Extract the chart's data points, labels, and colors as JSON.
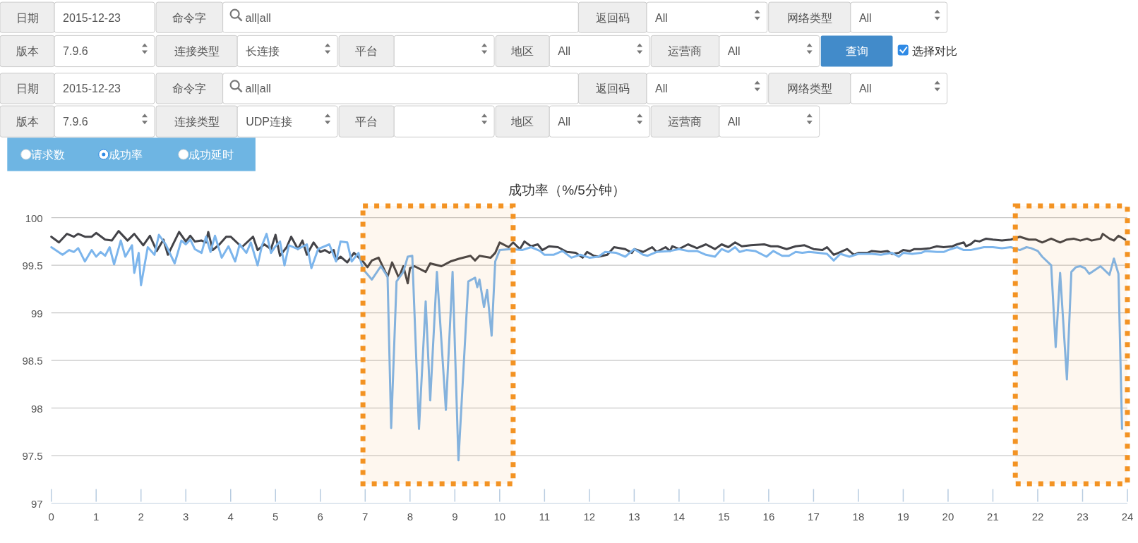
{
  "chart_data": {
    "type": "line",
    "title": "成功率（%/5分钟）",
    "x": [
      0,
      0.17,
      0.35,
      0.5,
      0.6,
      0.75,
      0.9,
      1.0,
      1.2,
      1.35,
      1.5,
      1.7,
      1.85,
      2.05,
      2.2,
      2.35,
      2.5,
      2.6,
      2.85,
      3.0,
      3.1,
      3.2,
      3.35,
      3.45,
      3.5,
      3.6,
      3.75,
      3.9,
      4.0,
      4.25,
      4.5,
      4.6,
      4.75,
      4.9,
      5.0,
      5.1,
      5.25,
      5.35,
      5.5,
      5.6,
      5.7,
      5.85,
      6.0,
      6.1,
      6.2,
      6.3,
      6.35,
      6.45,
      6.6,
      6.75,
      6.95,
      7.05,
      7.15,
      7.3,
      7.5,
      7.6,
      7.75,
      7.85,
      7.95,
      8.0,
      8.1,
      8.35,
      8.45,
      8.7,
      8.9,
      9.1,
      9.35,
      9.45,
      9.55,
      9.8,
      9.9,
      10.0,
      10.2,
      10.3,
      10.45,
      10.55,
      10.7,
      10.85,
      10.95,
      11.1,
      11.3,
      11.5,
      11.7,
      11.85,
      11.95,
      12.1,
      12.2,
      12.4,
      12.55,
      12.8,
      12.95,
      13.0,
      13.2,
      13.4,
      13.5,
      13.7,
      13.8,
      13.85,
      14.0,
      14.2,
      14.4,
      14.6,
      14.8,
      14.95,
      15.1,
      15.25,
      15.4,
      15.6,
      15.9,
      16.05,
      16.2,
      16.4,
      16.6,
      16.8,
      17.0,
      17.2,
      17.3,
      17.45,
      17.6,
      17.75,
      17.9,
      18.0,
      18.2,
      18.3,
      18.5,
      18.65,
      18.75,
      18.9,
      19.0,
      19.15,
      19.25,
      19.4,
      19.6,
      19.75,
      19.9,
      20.1,
      20.2,
      20.35,
      20.4,
      20.5,
      20.6,
      20.7,
      20.85,
      21.0,
      21.2,
      21.4,
      21.6,
      21.8,
      21.95,
      22.1,
      22.3,
      22.5,
      22.65,
      22.8,
      22.95,
      23.1,
      23.2,
      23.4,
      23.45,
      23.6,
      23.7,
      23.8,
      23.95
    ],
    "xlim": [
      0,
      24
    ],
    "xticks": [
      0,
      1,
      2,
      3,
      4,
      5,
      6,
      7,
      8,
      9,
      10,
      11,
      12,
      13,
      14,
      15,
      16,
      17,
      18,
      19,
      20,
      21,
      22,
      23,
      24
    ],
    "ylim": [
      97,
      100
    ],
    "yticks": [
      97,
      97.5,
      98,
      98.5,
      99,
      99.5,
      100
    ],
    "grid": "y",
    "series": [
      {
        "color": "#434348",
        "values": [
          99.8,
          99.74,
          99.83,
          99.8,
          99.83,
          99.8,
          99.8,
          99.84,
          99.77,
          99.76,
          99.86,
          99.76,
          99.83,
          99.71,
          99.81,
          99.65,
          99.77,
          99.61,
          99.85,
          99.75,
          99.81,
          99.75,
          99.76,
          99.74,
          99.85,
          99.66,
          99.72,
          99.8,
          99.8,
          99.69,
          99.8,
          99.66,
          99.72,
          99.67,
          99.82,
          99.6,
          99.69,
          99.8,
          99.67,
          99.76,
          99.61,
          99.74,
          99.64,
          99.66,
          99.63,
          99.66,
          99.55,
          99.59,
          99.53,
          99.63,
          99.54,
          99.48,
          99.55,
          99.58,
          99.38,
          99.53,
          99.37,
          99.49,
          99.31,
          99.47,
          99.49,
          99.43,
          99.52,
          99.49,
          99.54,
          99.57,
          99.6,
          99.55,
          99.6,
          99.58,
          99.63,
          99.74,
          99.69,
          99.74,
          99.67,
          99.75,
          99.7,
          99.72,
          99.66,
          99.7,
          99.69,
          99.64,
          99.63,
          99.58,
          99.64,
          99.6,
          99.59,
          99.61,
          99.69,
          99.67,
          99.63,
          99.67,
          99.64,
          99.69,
          99.64,
          99.69,
          99.65,
          99.7,
          99.67,
          99.72,
          99.68,
          99.72,
          99.67,
          99.72,
          99.69,
          99.74,
          99.7,
          99.71,
          99.72,
          99.7,
          99.7,
          99.67,
          99.7,
          99.71,
          99.67,
          99.66,
          99.69,
          99.61,
          99.64,
          99.67,
          99.61,
          99.63,
          99.63,
          99.65,
          99.64,
          99.65,
          99.62,
          99.63,
          99.66,
          99.65,
          99.67,
          99.67,
          99.68,
          99.7,
          99.69,
          99.7,
          99.72,
          99.74,
          99.7,
          99.72,
          99.76,
          99.75,
          99.78,
          99.77,
          99.76,
          99.77,
          99.8,
          99.77,
          99.77,
          99.74,
          99.78,
          99.74,
          99.77,
          99.78,
          99.76,
          99.78,
          99.76,
          99.78,
          99.83,
          99.78,
          99.76,
          99.81,
          99.77
        ]
      },
      {
        "color": "#7cb5ec",
        "x": [
          0,
          0.25,
          0.4,
          0.5,
          0.6,
          0.75,
          0.9,
          1.0,
          1.1,
          1.2,
          1.3,
          1.4,
          1.55,
          1.65,
          1.8,
          1.85,
          1.95,
          2.0,
          2.15,
          2.3,
          2.4,
          2.55,
          2.75,
          2.9,
          3.0,
          3.1,
          3.2,
          3.35,
          3.45,
          3.55,
          3.65,
          3.8,
          3.95,
          4.1,
          4.2,
          4.35,
          4.45,
          4.6,
          4.7,
          4.8,
          4.9,
          5.0,
          5.1,
          5.2,
          5.3,
          5.5,
          5.7,
          5.8,
          5.95,
          6.2,
          6.35,
          6.45,
          6.6,
          6.7,
          6.85,
          6.95,
          7.15,
          7.35,
          7.5,
          7.58,
          7.7,
          7.85,
          7.95,
          8.05,
          8.2,
          8.35,
          8.45,
          8.6,
          8.8,
          8.95,
          9.08,
          9.3,
          9.45,
          9.5,
          9.55,
          9.65,
          9.72,
          9.82,
          9.9,
          10.0,
          10.25,
          10.5,
          10.7,
          10.9,
          11.0,
          11.2,
          11.4,
          11.6,
          11.8,
          12.0,
          12.2,
          12.35,
          12.6,
          12.8,
          13.0,
          13.2,
          13.3,
          13.5,
          13.8,
          14.0,
          14.2,
          14.4,
          14.6,
          14.8,
          14.95,
          15.1,
          15.25,
          15.35,
          15.5,
          15.7,
          15.95,
          16.1,
          16.3,
          16.45,
          16.6,
          16.75,
          16.9,
          17.1,
          17.3,
          17.45,
          17.6,
          17.8,
          18.0,
          18.3,
          18.5,
          18.75,
          18.9,
          19.0,
          19.2,
          19.4,
          19.5,
          19.75,
          19.9,
          20.0,
          20.2,
          20.35,
          20.5,
          20.6,
          20.8,
          21.0,
          21.2,
          21.4,
          21.6,
          21.75,
          21.85,
          22.0,
          22.1,
          22.3,
          22.4,
          22.5,
          22.65,
          22.75,
          22.85,
          22.95,
          23.05,
          23.15,
          23.4,
          23.6,
          23.7,
          23.8,
          23.88
        ],
        "values": [
          99.69,
          99.61,
          99.66,
          99.64,
          99.68,
          99.54,
          99.66,
          99.59,
          99.64,
          99.6,
          99.69,
          99.51,
          99.76,
          99.59,
          99.71,
          99.42,
          99.63,
          99.29,
          99.69,
          99.61,
          99.82,
          99.72,
          99.52,
          99.76,
          99.72,
          99.77,
          99.67,
          99.63,
          99.8,
          99.64,
          99.81,
          99.58,
          99.7,
          99.54,
          99.72,
          99.63,
          99.74,
          99.5,
          99.71,
          99.83,
          99.63,
          99.7,
          99.75,
          99.5,
          99.71,
          99.67,
          99.72,
          99.47,
          99.67,
          99.72,
          99.54,
          99.75,
          99.74,
          99.54,
          99.63,
          99.46,
          99.35,
          99.49,
          99.38,
          97.79,
          99.33,
          99.43,
          99.59,
          99.6,
          97.78,
          99.12,
          98.08,
          99.43,
          97.98,
          99.43,
          97.45,
          99.33,
          99.37,
          99.27,
          99.35,
          99.06,
          99.24,
          98.76,
          99.54,
          99.66,
          99.67,
          99.66,
          99.69,
          99.65,
          99.61,
          99.61,
          99.65,
          99.58,
          99.61,
          99.58,
          99.59,
          99.64,
          99.63,
          99.59,
          99.67,
          99.61,
          99.6,
          99.64,
          99.65,
          99.67,
          99.65,
          99.65,
          99.61,
          99.59,
          99.67,
          99.64,
          99.69,
          99.64,
          99.66,
          99.65,
          99.59,
          99.65,
          99.6,
          99.6,
          99.64,
          99.63,
          99.64,
          99.63,
          99.62,
          99.55,
          99.62,
          99.59,
          99.62,
          99.62,
          99.61,
          99.63,
          99.59,
          99.63,
          99.62,
          99.63,
          99.65,
          99.64,
          99.64,
          99.66,
          99.69,
          99.66,
          99.66,
          99.67,
          99.69,
          99.69,
          99.68,
          99.69,
          99.66,
          99.69,
          99.68,
          99.65,
          99.59,
          99.5,
          98.64,
          99.42,
          98.3,
          99.43,
          99.48,
          99.49,
          99.47,
          99.41,
          99.49,
          99.4,
          99.57,
          99.41,
          97.78
        ]
      }
    ],
    "bands": [
      {
        "axis": "x",
        "from": 6.95,
        "to": 10.3,
        "color": "#f39323"
      },
      {
        "axis": "x",
        "from": 21.5,
        "to": 24,
        "color": "#f39323"
      }
    ],
    "annotations": [
      "日期",
      "2015-12-23",
      "命令字",
      "all|all",
      "返回码",
      "All",
      "网络类型",
      "All",
      "版本",
      "7.9.6",
      "连接类型",
      "长连接",
      "平台",
      "地区",
      "All",
      "运营商",
      "All",
      "查询",
      "选择对比",
      "日期",
      "2015-12-23",
      "命令字",
      "all|all",
      "返回码",
      "All",
      "网络类型",
      "All",
      "版本",
      "7.9.6",
      "连接类型",
      "UDP连接",
      "平台",
      "地区",
      "All",
      "运营商",
      "All",
      "请求数",
      "成功率",
      "成功延时"
    ]
  }
}
